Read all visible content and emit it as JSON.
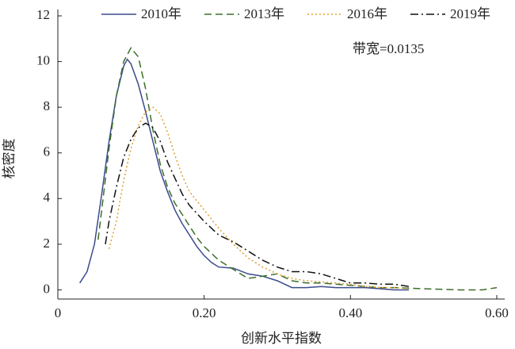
{
  "chart_data": {
    "type": "line",
    "annotation": "带宽=0.0135",
    "x_label": "创新水平指数",
    "y_label": "核密度",
    "xlim": [
      0,
      0.6
    ],
    "ylim": [
      -0.4,
      12
    ],
    "xticks": [
      0,
      {
        "value": 0.2,
        "label": "0.20"
      },
      {
        "value": 0.4,
        "label": "0.40"
      },
      {
        "value": 0.6,
        "label": "0.60"
      }
    ],
    "yticks": [
      0,
      2,
      4,
      6,
      8,
      10,
      12
    ],
    "series": [
      {
        "name": "2010年",
        "color": "#3b4a8c",
        "dash": "",
        "x": [
          0.03,
          0.04,
          0.05,
          0.06,
          0.07,
          0.08,
          0.09,
          0.095,
          0.1,
          0.11,
          0.12,
          0.13,
          0.14,
          0.15,
          0.16,
          0.17,
          0.18,
          0.19,
          0.2,
          0.21,
          0.22,
          0.24,
          0.26,
          0.28,
          0.3,
          0.32,
          0.34,
          0.36,
          0.38,
          0.4,
          0.42,
          0.44,
          0.46,
          0.48
        ],
        "values": [
          0.3,
          0.8,
          2.0,
          4.2,
          6.5,
          8.5,
          9.8,
          10.1,
          9.9,
          9.0,
          7.8,
          6.5,
          5.2,
          4.3,
          3.5,
          2.9,
          2.4,
          1.9,
          1.5,
          1.2,
          1.0,
          0.95,
          0.7,
          0.6,
          0.4,
          0.1,
          0.1,
          0.15,
          0.1,
          0.1,
          0.1,
          0.05,
          0.0,
          0.0
        ]
      },
      {
        "name": "2013年",
        "color": "#3a6e2a",
        "dash": "9 5",
        "x": [
          0.055,
          0.06,
          0.07,
          0.08,
          0.09,
          0.1,
          0.11,
          0.12,
          0.13,
          0.14,
          0.15,
          0.16,
          0.17,
          0.18,
          0.19,
          0.2,
          0.22,
          0.24,
          0.26,
          0.28,
          0.3,
          0.32,
          0.34,
          0.36,
          0.38,
          0.4,
          0.42,
          0.44,
          0.46,
          0.5,
          0.55,
          0.58,
          0.6
        ],
        "values": [
          2.2,
          3.5,
          6.2,
          8.5,
          10.0,
          10.6,
          10.2,
          8.8,
          7.0,
          5.5,
          4.5,
          3.8,
          3.3,
          2.8,
          2.3,
          1.9,
          1.3,
          0.9,
          0.5,
          0.6,
          0.7,
          0.4,
          0.3,
          0.3,
          0.25,
          0.2,
          0.15,
          0.1,
          0.1,
          0.05,
          0.0,
          0.0,
          0.1
        ]
      },
      {
        "name": "2016年",
        "color": "#e0a030",
        "dash": "2 3",
        "x": [
          0.07,
          0.08,
          0.09,
          0.1,
          0.11,
          0.12,
          0.13,
          0.14,
          0.15,
          0.16,
          0.17,
          0.18,
          0.2,
          0.22,
          0.24,
          0.26,
          0.28,
          0.3,
          0.32,
          0.34,
          0.36,
          0.38,
          0.4,
          0.42,
          0.44,
          0.46,
          0.48
        ],
        "values": [
          1.8,
          3.0,
          4.8,
          6.2,
          7.2,
          7.8,
          8.0,
          7.7,
          6.9,
          5.9,
          5.0,
          4.3,
          3.5,
          2.7,
          2.0,
          1.4,
          1.0,
          0.7,
          0.5,
          0.4,
          0.35,
          0.3,
          0.25,
          0.15,
          0.1,
          0.1,
          0.05
        ]
      },
      {
        "name": "2019年",
        "color": "#111111",
        "dash": "10 4 2 4",
        "x": [
          0.065,
          0.07,
          0.08,
          0.09,
          0.1,
          0.11,
          0.12,
          0.13,
          0.14,
          0.15,
          0.16,
          0.17,
          0.18,
          0.2,
          0.22,
          0.24,
          0.26,
          0.28,
          0.3,
          0.32,
          0.34,
          0.36,
          0.38,
          0.4,
          0.42,
          0.44,
          0.46,
          0.48
        ],
        "values": [
          2.0,
          3.0,
          4.5,
          5.8,
          6.6,
          7.1,
          7.3,
          7.1,
          6.5,
          5.6,
          4.9,
          4.2,
          3.7,
          3.0,
          2.4,
          2.1,
          1.7,
          1.3,
          1.0,
          0.8,
          0.8,
          0.7,
          0.5,
          0.3,
          0.3,
          0.25,
          0.25,
          0.15
        ]
      }
    ]
  }
}
